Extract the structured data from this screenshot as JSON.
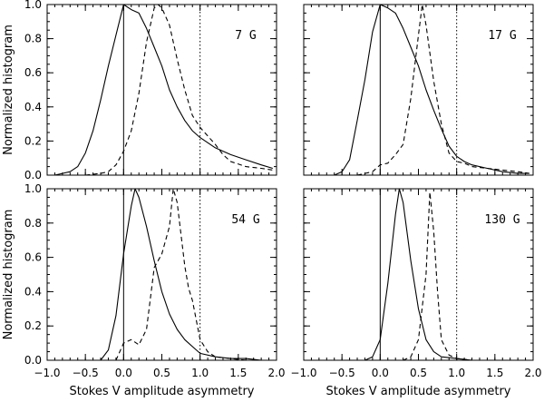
{
  "figure": {
    "ylabel": "Normalized histogram",
    "xlabel": "Stokes V amplitude asymmetry"
  },
  "chart_data": [
    {
      "type": "line",
      "label": "7 G",
      "xlim": [
        -1.0,
        2.0
      ],
      "ylim": [
        0.0,
        1.0
      ],
      "xticks": [
        "-1.0",
        "-0.5",
        "0.0",
        "0.5",
        "1.0",
        "1.5",
        "2.0"
      ],
      "yticks": [
        "0.0",
        "0.2",
        "0.4",
        "0.6",
        "0.8",
        "1.0"
      ],
      "show_xtick_labels": false,
      "show_ytick_labels": true,
      "show_xlabel": false,
      "show_ylabel": true,
      "reference_lines": [
        {
          "x": 0.0,
          "style": "solid"
        },
        {
          "x": 1.0,
          "style": "dotted"
        }
      ],
      "series": [
        {
          "style": "solid",
          "x": [
            -0.9,
            -0.8,
            -0.7,
            -0.6,
            -0.5,
            -0.4,
            -0.3,
            -0.2,
            -0.1,
            0.0,
            0.1,
            0.2,
            0.3,
            0.4,
            0.5,
            0.6,
            0.7,
            0.8,
            0.9,
            1.0,
            1.2,
            1.4,
            1.6,
            1.8,
            1.95
          ],
          "y": [
            0.0,
            0.01,
            0.02,
            0.05,
            0.13,
            0.26,
            0.44,
            0.64,
            0.82,
            1.0,
            0.97,
            0.95,
            0.86,
            0.75,
            0.64,
            0.5,
            0.4,
            0.32,
            0.26,
            0.22,
            0.16,
            0.12,
            0.09,
            0.06,
            0.04
          ]
        },
        {
          "style": "dashed",
          "x": [
            -0.5,
            -0.3,
            -0.2,
            -0.1,
            0.0,
            0.1,
            0.2,
            0.3,
            0.4,
            0.45,
            0.5,
            0.6,
            0.7,
            0.8,
            0.9,
            1.0,
            1.1,
            1.2,
            1.3,
            1.4,
            1.6,
            1.8,
            1.95
          ],
          "y": [
            0.0,
            0.01,
            0.02,
            0.06,
            0.14,
            0.26,
            0.48,
            0.78,
            0.98,
            1.0,
            0.98,
            0.88,
            0.68,
            0.5,
            0.35,
            0.28,
            0.23,
            0.18,
            0.12,
            0.08,
            0.05,
            0.04,
            0.03
          ]
        }
      ]
    },
    {
      "type": "line",
      "label": "17 G",
      "xlim": [
        -1.0,
        2.0
      ],
      "ylim": [
        0.0,
        1.0
      ],
      "xticks": [
        "-1.0",
        "-0.5",
        "0.0",
        "0.5",
        "1.0",
        "1.5",
        "2.0"
      ],
      "yticks": [
        "0.0",
        "0.2",
        "0.4",
        "0.6",
        "0.8",
        "1.0"
      ],
      "show_xtick_labels": false,
      "show_ytick_labels": false,
      "show_xlabel": false,
      "show_ylabel": false,
      "reference_lines": [
        {
          "x": 0.0,
          "style": "solid"
        },
        {
          "x": 1.0,
          "style": "dotted"
        }
      ],
      "series": [
        {
          "style": "solid",
          "x": [
            -0.6,
            -0.5,
            -0.4,
            -0.3,
            -0.2,
            -0.1,
            0.0,
            0.1,
            0.2,
            0.3,
            0.4,
            0.5,
            0.6,
            0.7,
            0.8,
            0.9,
            1.0,
            1.1,
            1.2,
            1.4,
            1.6,
            1.8,
            1.95
          ],
          "y": [
            0.0,
            0.02,
            0.09,
            0.32,
            0.56,
            0.84,
            1.0,
            0.98,
            0.95,
            0.86,
            0.75,
            0.64,
            0.5,
            0.38,
            0.27,
            0.17,
            0.11,
            0.08,
            0.06,
            0.04,
            0.02,
            0.01,
            0.01
          ]
        },
        {
          "style": "dashed",
          "x": [
            -0.3,
            -0.1,
            0.0,
            0.1,
            0.2,
            0.3,
            0.4,
            0.5,
            0.55,
            0.6,
            0.7,
            0.8,
            0.9,
            1.0,
            1.1,
            1.2,
            1.4,
            1.6,
            1.8,
            1.95
          ],
          "y": [
            0.0,
            0.02,
            0.06,
            0.07,
            0.12,
            0.18,
            0.45,
            0.82,
            1.0,
            0.88,
            0.55,
            0.3,
            0.13,
            0.08,
            0.07,
            0.05,
            0.04,
            0.03,
            0.02,
            0.01
          ]
        }
      ]
    },
    {
      "type": "line",
      "label": "54 G",
      "xlim": [
        -1.0,
        2.0
      ],
      "ylim": [
        0.0,
        1.0
      ],
      "xticks": [
        "-1.0",
        "-0.5",
        "0.0",
        "0.5",
        "1.0",
        "1.5",
        "2.0"
      ],
      "yticks": [
        "0.0",
        "0.2",
        "0.4",
        "0.6",
        "0.8",
        "1.0"
      ],
      "show_xtick_labels": true,
      "show_ytick_labels": true,
      "show_xlabel": true,
      "show_ylabel": true,
      "reference_lines": [
        {
          "x": 0.0,
          "style": "solid"
        },
        {
          "x": 1.0,
          "style": "dotted"
        }
      ],
      "series": [
        {
          "style": "solid",
          "x": [
            -0.3,
            -0.2,
            -0.1,
            0.0,
            0.1,
            0.15,
            0.2,
            0.3,
            0.4,
            0.5,
            0.6,
            0.7,
            0.8,
            0.9,
            1.0,
            1.2,
            1.4,
            1.6,
            1.8,
            1.95
          ],
          "y": [
            0.0,
            0.06,
            0.26,
            0.62,
            0.9,
            1.0,
            0.95,
            0.78,
            0.58,
            0.4,
            0.27,
            0.18,
            0.12,
            0.08,
            0.04,
            0.02,
            0.01,
            0.01,
            0.0,
            0.0
          ]
        },
        {
          "style": "dashed",
          "x": [
            -0.1,
            0.0,
            0.1,
            0.2,
            0.3,
            0.4,
            0.5,
            0.6,
            0.65,
            0.7,
            0.8,
            0.85,
            0.9,
            1.0,
            1.1,
            1.2,
            1.4,
            1.6,
            1.95
          ],
          "y": [
            0.0,
            0.1,
            0.12,
            0.09,
            0.18,
            0.54,
            0.62,
            0.78,
            1.0,
            0.92,
            0.55,
            0.42,
            0.35,
            0.12,
            0.05,
            0.02,
            0.01,
            0.0,
            0.0
          ]
        }
      ]
    },
    {
      "type": "line",
      "label": "130 G",
      "xlim": [
        -1.0,
        2.0
      ],
      "ylim": [
        0.0,
        1.0
      ],
      "xticks": [
        "-1.0",
        "-0.5",
        "0.0",
        "0.5",
        "1.0",
        "1.5",
        "2.0"
      ],
      "yticks": [
        "0.0",
        "0.2",
        "0.4",
        "0.6",
        "0.8",
        "1.0"
      ],
      "show_xtick_labels": true,
      "show_ytick_labels": false,
      "show_xlabel": true,
      "show_ylabel": false,
      "reference_lines": [
        {
          "x": 0.0,
          "style": "solid"
        },
        {
          "x": 1.0,
          "style": "dotted"
        }
      ],
      "series": [
        {
          "style": "solid",
          "x": [
            -0.2,
            -0.1,
            0.0,
            0.1,
            0.2,
            0.25,
            0.3,
            0.4,
            0.5,
            0.6,
            0.7,
            0.8,
            1.0,
            1.2,
            1.5,
            1.95
          ],
          "y": [
            0.0,
            0.02,
            0.12,
            0.45,
            0.85,
            1.0,
            0.92,
            0.58,
            0.3,
            0.12,
            0.05,
            0.02,
            0.01,
            0.0,
            0.0,
            0.0
          ]
        },
        {
          "style": "dashed",
          "x": [
            0.3,
            0.4,
            0.5,
            0.6,
            0.65,
            0.7,
            0.75,
            0.8,
            0.9,
            1.0,
            1.2,
            1.5,
            1.95
          ],
          "y": [
            0.0,
            0.02,
            0.12,
            0.5,
            0.98,
            0.75,
            0.4,
            0.12,
            0.03,
            0.01,
            0.0,
            0.0,
            0.0
          ]
        }
      ]
    }
  ]
}
